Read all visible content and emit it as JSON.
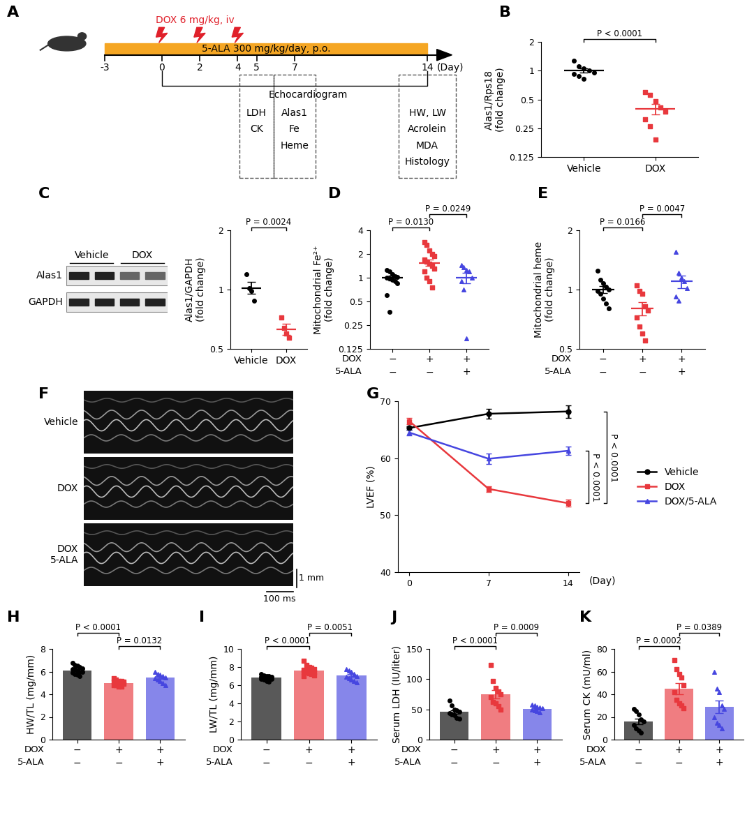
{
  "panel_A": {
    "panel": "A",
    "dox_label": "DOX 6 mg/kg, iv",
    "dox_days": [
      0,
      2,
      4
    ],
    "treatment_label": "5-ALA 300 mg/kg/day, p.o.",
    "start_day": -3,
    "end_day": 14,
    "day_ticks": [
      -3,
      0,
      2,
      4,
      5,
      7,
      14
    ],
    "day_label": "(Day)",
    "bracket": {
      "from": 0,
      "to": 14,
      "label": "Echocardiogram"
    },
    "boxes": [
      {
        "day": 5,
        "items": [
          "LDH",
          "CK"
        ]
      },
      {
        "day": 7,
        "items": [
          "Alas1",
          "Fe",
          "Heme"
        ]
      },
      {
        "day": 14,
        "items": [
          "HW, LW",
          "Acrolein",
          "MDA",
          "Histology"
        ]
      }
    ]
  },
  "panel_C_blot": {
    "panel": "C",
    "lanes": [
      "Vehicle",
      "DOX"
    ],
    "rows": [
      "Alas1",
      "GAPDH"
    ]
  },
  "panel_F": {
    "panel": "F",
    "rows": [
      "Vehicle",
      "DOX",
      "DOX\n5-ALA"
    ],
    "scale_y": "1 mm",
    "scale_x": "100 ms"
  },
  "chart_data": [
    {
      "panel": "B",
      "type": "dot",
      "categories": [
        "Vehicle",
        "DOX"
      ],
      "ylabel": "Alas1/Rps18\n(fold change)",
      "log": "y",
      "ylim": [
        0.125,
        2
      ],
      "yticks": [
        0.125,
        0.25,
        0.5,
        1,
        2
      ],
      "series": [
        {
          "color": "#000000",
          "marker": "circle",
          "points": [
            1.28,
            1.12,
            1.06,
            1.0,
            0.96,
            0.93,
            0.88,
            0.82
          ],
          "mean": 1.0,
          "sem": 0.05
        },
        {
          "color": "#e8383d",
          "marker": "square",
          "points": [
            0.6,
            0.56,
            0.48,
            0.41,
            0.37,
            0.31,
            0.26,
            0.19
          ],
          "mean": 0.4,
          "sem": 0.05
        }
      ],
      "comparisons": [
        {
          "groups": [
            0,
            1
          ],
          "label": "P < 0.0001"
        }
      ]
    },
    {
      "type": "dot",
      "categories": [
        "Vehicle",
        "DOX"
      ],
      "ylabel": "Alas1/GAPDH\n(fold change)",
      "log": "y",
      "ylim": [
        0.5,
        2
      ],
      "yticks": [
        0.5,
        1,
        2
      ],
      "series": [
        {
          "color": "#000000",
          "marker": "circle",
          "points": [
            1.2,
            1.02,
            0.98,
            0.88
          ],
          "mean": 1.02,
          "sem": 0.07
        },
        {
          "color": "#e8383d",
          "marker": "square",
          "points": [
            0.72,
            0.64,
            0.6,
            0.57
          ],
          "mean": 0.63,
          "sem": 0.04
        }
      ],
      "comparisons": [
        {
          "groups": [
            0,
            1
          ],
          "label": "P = 0.0024"
        }
      ]
    },
    {
      "panel": "D",
      "type": "dot",
      "ylabel": "Mitochondrial Fe²⁺\n(fold change)",
      "log": "y",
      "ylim": [
        0.125,
        4
      ],
      "yticks": [
        0.125,
        0.25,
        0.5,
        1,
        2,
        4
      ],
      "conditions": [
        {
          "name": "DOX",
          "values": [
            "−",
            "+",
            "+"
          ]
        },
        {
          "name": "5-ALA",
          "values": [
            "−",
            "−",
            "+"
          ]
        }
      ],
      "series": [
        {
          "color": "#000000",
          "marker": "circle",
          "points": [
            1.25,
            1.2,
            1.1,
            1.05,
            1.02,
            1.0,
            0.98,
            0.95,
            0.9,
            0.85,
            0.6,
            0.37
          ],
          "mean": 1.0,
          "sem": 0.07
        },
        {
          "color": "#e8383d",
          "marker": "square",
          "points": [
            2.8,
            2.6,
            2.2,
            2.0,
            1.9,
            1.7,
            1.6,
            1.5,
            1.4,
            1.3,
            1.2,
            1.0,
            0.9,
            0.75
          ],
          "mean": 1.55,
          "sem": 0.14
        },
        {
          "color": "#4646e0",
          "marker": "triangle",
          "points": [
            1.45,
            1.35,
            1.25,
            1.2,
            1.0,
            0.9,
            0.7,
            0.17
          ],
          "mean": 1.0,
          "sem": 0.15
        }
      ],
      "comparisons": [
        {
          "groups": [
            0,
            1
          ],
          "label": "P = 0.0130"
        },
        {
          "groups": [
            1,
            2
          ],
          "label": "P = 0.0249"
        }
      ]
    },
    {
      "panel": "E",
      "type": "dot",
      "ylabel": "Mitochondrial heme\n(fold change)",
      "log": "y",
      "ylim": [
        0.5,
        2
      ],
      "yticks": [
        0.5,
        1,
        2
      ],
      "conditions": [
        {
          "name": "DOX",
          "values": [
            "−",
            "+",
            "+"
          ]
        },
        {
          "name": "5-ALA",
          "values": [
            "−",
            "−",
            "+"
          ]
        }
      ],
      "series": [
        {
          "color": "#000000",
          "marker": "circle",
          "points": [
            1.25,
            1.12,
            1.08,
            1.03,
            1.0,
            0.98,
            0.95,
            0.9,
            0.85,
            0.8
          ],
          "mean": 1.0,
          "sem": 0.04
        },
        {
          "color": "#e8383d",
          "marker": "square",
          "points": [
            1.05,
            0.98,
            0.95,
            0.82,
            0.78,
            0.72,
            0.65,
            0.6,
            0.55
          ],
          "mean": 0.8,
          "sem": 0.06
        },
        {
          "color": "#4646e0",
          "marker": "triangle",
          "points": [
            1.55,
            1.22,
            1.15,
            1.1,
            1.02,
            0.92,
            0.88
          ],
          "mean": 1.1,
          "sem": 0.08
        }
      ],
      "comparisons": [
        {
          "groups": [
            0,
            1
          ],
          "label": "P = 0.0166"
        },
        {
          "groups": [
            1,
            2
          ],
          "label": "P = 0.0047"
        }
      ]
    },
    {
      "panel": "G",
      "type": "line",
      "x": [
        0,
        7,
        14
      ],
      "xlim": [
        -1,
        15
      ],
      "xticks": [
        0,
        7,
        14
      ],
      "xlabel": "(Day)",
      "ylabel": "LVEF (%)",
      "ylim": [
        40,
        70
      ],
      "yticks": [
        40,
        50,
        60,
        70
      ],
      "legend": "center left",
      "series": [
        {
          "name": "Vehicle",
          "color": "#000000",
          "marker": "circle",
          "values": [
            65.3,
            67.8,
            68.2
          ],
          "errors": [
            0.3,
            0.9,
            1.1
          ]
        },
        {
          "name": "DOX",
          "color": "#e8383d",
          "marker": "square",
          "values": [
            66.5,
            54.6,
            52.1
          ],
          "errors": [
            0.5,
            0.5,
            0.6
          ]
        },
        {
          "name": "DOX/5-ALA",
          "color": "#4646e0",
          "marker": "triangle",
          "values": [
            64.5,
            59.9,
            61.3
          ],
          "errors": [
            0.5,
            0.9,
            0.7
          ]
        }
      ],
      "comparisons": [
        {
          "series": [
            1,
            2
          ],
          "label": "P < 0.0001"
        },
        {
          "series": [
            0,
            1
          ],
          "label": "P < 0.0001"
        }
      ]
    },
    {
      "panel": "H",
      "type": "bar",
      "ylabel": "HW/TL (mg/mm)",
      "ylim": [
        0,
        8
      ],
      "yticks": [
        0,
        2,
        4,
        6,
        8
      ],
      "conditions": [
        {
          "name": "DOX",
          "values": [
            "−",
            "+",
            "+"
          ]
        },
        {
          "name": "5-ALA",
          "values": [
            "−",
            "−",
            "+"
          ]
        }
      ],
      "series": [
        {
          "color": "#000000",
          "marker": "circle",
          "points": [
            6.8,
            6.6,
            6.5,
            6.4,
            6.3,
            6.2,
            6.2,
            6.1,
            6.0,
            6.0,
            5.9,
            5.8,
            5.7,
            5.6
          ],
          "mean": 6.1,
          "sem": 0.09
        },
        {
          "color": "#e8383d",
          "marker": "square",
          "points": [
            5.4,
            5.3,
            5.2,
            5.2,
            5.1,
            5.1,
            5.0,
            5.0,
            4.9,
            4.9,
            4.8,
            4.8,
            4.7,
            4.7
          ],
          "mean": 5.0,
          "sem": 0.06
        },
        {
          "color": "#4646e0",
          "marker": "triangle",
          "points": [
            6.0,
            5.8,
            5.7,
            5.6,
            5.5,
            5.4,
            5.3,
            5.2,
            5.0,
            4.8
          ],
          "mean": 5.45,
          "sem": 0.11
        }
      ],
      "comparisons": [
        {
          "groups": [
            1,
            2
          ],
          "label": "P = 0.0132"
        },
        {
          "groups": [
            0,
            1
          ],
          "label": "P < 0.0001"
        }
      ]
    },
    {
      "panel": "I",
      "type": "bar",
      "ylabel": "LW/TL (mg/mm)",
      "ylim": [
        0,
        10
      ],
      "yticks": [
        0,
        2,
        4,
        6,
        8,
        10
      ],
      "conditions": [
        {
          "name": "DOX",
          "values": [
            "−",
            "+",
            "+"
          ]
        },
        {
          "name": "5-ALA",
          "values": [
            "−",
            "−",
            "+"
          ]
        }
      ],
      "series": [
        {
          "color": "#000000",
          "marker": "circle",
          "points": [
            7.2,
            7.1,
            7.0,
            7.0,
            6.9,
            6.9,
            6.9,
            6.8,
            6.8,
            6.7,
            6.7,
            6.6,
            6.5,
            6.4
          ],
          "mean": 6.85,
          "sem": 0.06
        },
        {
          "color": "#e8383d",
          "marker": "square",
          "points": [
            8.7,
            8.2,
            8.0,
            7.9,
            7.8,
            7.7,
            7.7,
            7.6,
            7.6,
            7.5,
            7.5,
            7.4,
            7.3,
            7.2,
            7.1,
            7.0
          ],
          "mean": 7.65,
          "sem": 0.1
        },
        {
          "color": "#4646e0",
          "marker": "triangle",
          "points": [
            7.8,
            7.6,
            7.5,
            7.2,
            7.0,
            6.9,
            6.8,
            6.6,
            6.5,
            6.3
          ],
          "mean": 7.05,
          "sem": 0.15
        }
      ],
      "comparisons": [
        {
          "groups": [
            0,
            1
          ],
          "label": "P < 0.0001"
        },
        {
          "groups": [
            1,
            2
          ],
          "label": "P = 0.0051"
        }
      ]
    },
    {
      "panel": "J",
      "type": "bar",
      "ylabel": "Serum LDH (IU/liter)",
      "ylim": [
        0,
        150
      ],
      "yticks": [
        0,
        50,
        100,
        150
      ],
      "conditions": [
        {
          "name": "DOX",
          "values": [
            "−",
            "+",
            "+"
          ]
        },
        {
          "name": "5-ALA",
          "values": [
            "−",
            "−",
            "+"
          ]
        }
      ],
      "series": [
        {
          "color": "#000000",
          "marker": "circle",
          "points": [
            65,
            57,
            50,
            48,
            46,
            44,
            42,
            40,
            36,
            35
          ],
          "mean": 46,
          "sem": 3
        },
        {
          "color": "#e8383d",
          "marker": "square",
          "points": [
            123,
            97,
            85,
            80,
            75,
            70,
            62,
            60,
            55,
            50
          ],
          "mean": 75,
          "sem": 7
        },
        {
          "color": "#4646e0",
          "marker": "triangle",
          "points": [
            58,
            56,
            54,
            53,
            52,
            50,
            49,
            47,
            45
          ],
          "mean": 51,
          "sem": 1.5
        }
      ],
      "comparisons": [
        {
          "groups": [
            0,
            1
          ],
          "label": "P < 0.0001"
        },
        {
          "groups": [
            1,
            2
          ],
          "label": "P = 0.0009"
        }
      ]
    },
    {
      "panel": "K",
      "type": "bar",
      "ylabel": "Serum CK (mU/ml)",
      "ylim": [
        0,
        80
      ],
      "yticks": [
        0,
        20,
        40,
        60,
        80
      ],
      "conditions": [
        {
          "name": "DOX",
          "values": [
            "−",
            "+",
            "+"
          ]
        },
        {
          "name": "5-ALA",
          "values": [
            "−",
            "−",
            "+"
          ]
        }
      ],
      "series": [
        {
          "color": "#000000",
          "marker": "circle",
          "points": [
            27,
            25,
            22,
            18,
            16,
            13,
            10,
            8,
            6
          ],
          "mean": 16,
          "sem": 2.5
        },
        {
          "color": "#e8383d",
          "marker": "square",
          "points": [
            70,
            62,
            58,
            55,
            48,
            42,
            35,
            32,
            30,
            28
          ],
          "mean": 45,
          "sem": 5
        },
        {
          "color": "#4646e0",
          "marker": "triangle",
          "points": [
            60,
            45,
            42,
            30,
            27,
            20,
            15,
            13,
            10
          ],
          "mean": 29,
          "sem": 5.5
        }
      ],
      "comparisons": [
        {
          "groups": [
            0,
            1
          ],
          "label": "P = 0.0002"
        },
        {
          "groups": [
            1,
            2
          ],
          "label": "P = 0.0389"
        }
      ]
    }
  ]
}
